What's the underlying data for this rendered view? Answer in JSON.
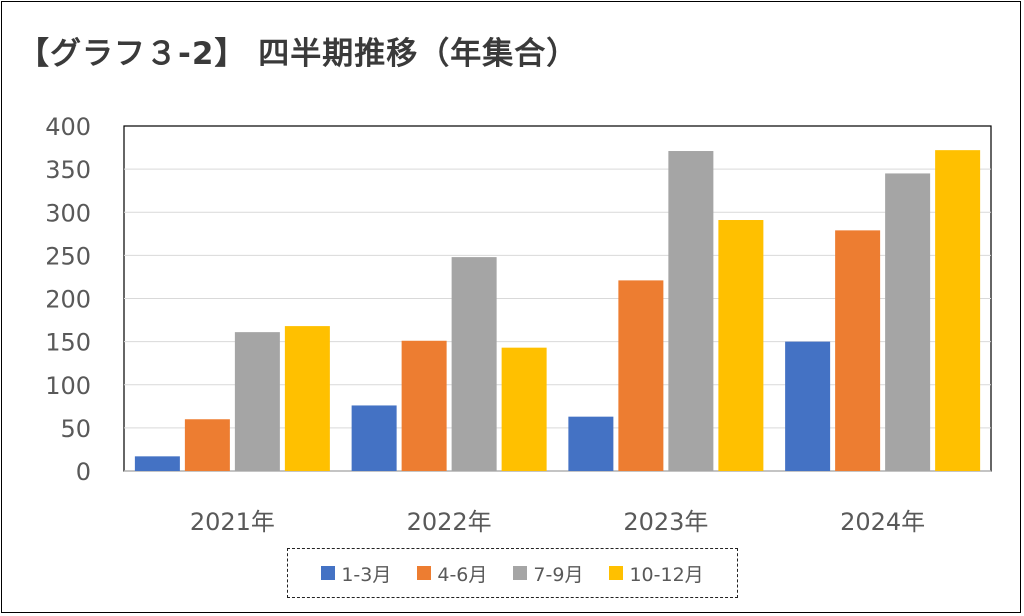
{
  "chart_data": {
    "type": "bar",
    "title": "【グラフ３-2】 四半期推移（年集合）",
    "categories": [
      "2021年",
      "2022年",
      "2023年",
      "2024年"
    ],
    "series": [
      {
        "name": "1-3月",
        "color": "#4472C4",
        "values": [
          17,
          76,
          63,
          150
        ]
      },
      {
        "name": "4-6月",
        "color": "#ED7D31",
        "values": [
          60,
          151,
          221,
          279
        ]
      },
      {
        "name": "7-9月",
        "color": "#A5A5A5",
        "values": [
          161,
          248,
          371,
          345
        ]
      },
      {
        "name": "10-12月",
        "color": "#FFC000",
        "values": [
          168,
          143,
          291,
          372
        ]
      }
    ],
    "ylim": [
      0,
      400
    ],
    "yticks": [
      0,
      50,
      100,
      150,
      200,
      250,
      300,
      350,
      400
    ],
    "grid": true,
    "legend_position": "bottom"
  }
}
